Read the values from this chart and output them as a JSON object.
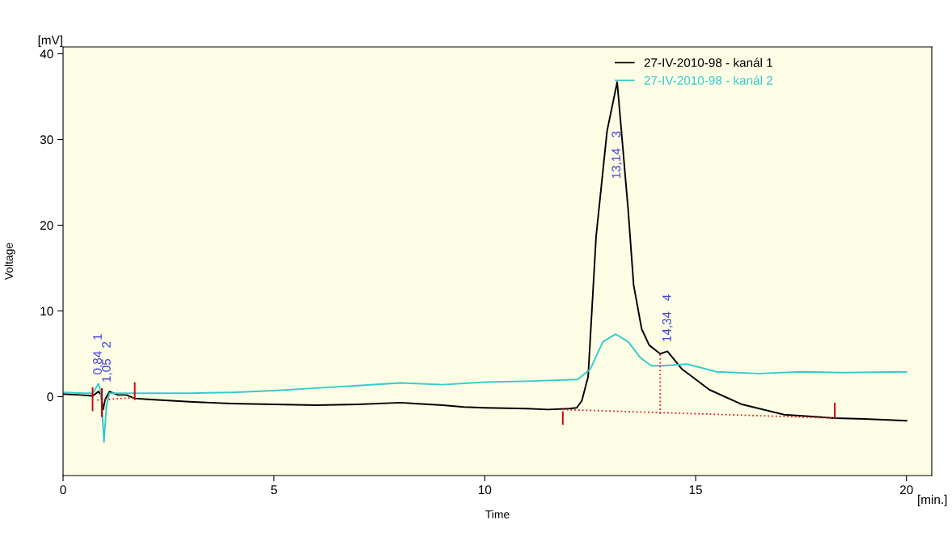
{
  "chart_data": {
    "type": "line",
    "xlabel": "Time",
    "ylabel": "Voltage",
    "xlim": [
      0,
      20.6
    ],
    "ylim": [
      -9.2,
      40.8
    ],
    "xticks": [
      0,
      5,
      10,
      15,
      20
    ],
    "yticks": [
      0,
      10,
      20,
      30,
      40
    ],
    "grid": false,
    "legend": "top right",
    "marker": "none",
    "series": [
      {
        "name": "27-IV-2010-98 - kanál 1",
        "color": "#000000",
        "line_style": "solid",
        "x": [
          0,
          0.4,
          0.7,
          0.84,
          0.9,
          0.95,
          1.0,
          1.1,
          1.3,
          1.5,
          1.7,
          2,
          3,
          4,
          5,
          6,
          7,
          8,
          9,
          9.5,
          10,
          11,
          11.5,
          12,
          12.18,
          12.3,
          12.45,
          12.64,
          12.9,
          13.14,
          13.4,
          13.53,
          13.72,
          13.9,
          14.16,
          14.33,
          14.68,
          15.33,
          16.1,
          17.1,
          18.3,
          19,
          20
        ],
        "values": [
          0.3,
          0.2,
          0.1,
          0.6,
          0.2,
          -1.5,
          -0.3,
          0.6,
          0.2,
          0.2,
          -0.2,
          -0.3,
          -0.6,
          -0.8,
          -0.9,
          -1.0,
          -0.9,
          -0.7,
          -1.0,
          -1.2,
          -1.3,
          -1.4,
          -1.5,
          -1.4,
          -1.3,
          -0.5,
          2.3,
          18.7,
          31,
          36.7,
          21.8,
          13,
          7.9,
          6.0,
          5.0,
          5.3,
          3.2,
          0.8,
          -0.9,
          -2.1,
          -2.5,
          -2.6,
          -2.8
        ]
      },
      {
        "name": "27-IV-2010-98 - kanál 2",
        "color": "#33cccc",
        "line_style": "solid",
        "x": [
          0,
          0.5,
          0.7,
          0.84,
          0.9,
          0.97,
          1.03,
          1.1,
          1.5,
          3,
          4,
          5,
          6,
          7,
          8,
          9,
          10,
          11,
          12.2,
          12.5,
          12.8,
          13.1,
          13.4,
          13.7,
          13.95,
          14.2,
          14.8,
          15.5,
          16.5,
          17.5,
          18.5,
          20
        ],
        "values": [
          0.5,
          0.4,
          0.4,
          1.5,
          0.5,
          -5.3,
          -1.0,
          0.4,
          0.4,
          0.4,
          0.5,
          0.7,
          1.0,
          1.3,
          1.6,
          1.4,
          1.7,
          1.8,
          2.0,
          3.2,
          6.4,
          7.3,
          6.4,
          4.5,
          3.6,
          3.6,
          3.8,
          2.9,
          2.7,
          2.9,
          2.8,
          2.9
        ]
      },
      {
        "color": "#dd2222",
        "line_style": "dotted",
        "x": [
          0.81,
          1.7
        ],
        "values": [
          -0.4,
          -0.1
        ]
      },
      {
        "color": "#dd2222",
        "line_style": "dotted",
        "x": [
          11.85,
          18.3
        ],
        "values": [
          -1.5,
          -2.5
        ]
      },
      {
        "color": "#dd2222",
        "line_style": "dotted",
        "x": [
          14.16,
          14.16
        ],
        "values": [
          -2.0,
          5.0
        ]
      },
      {
        "color": "#cc0000",
        "line_style": "solid",
        "x": [
          0.7,
          0.7
        ],
        "values": [
          1.0,
          -1.6
        ]
      },
      {
        "color": "#cc0000",
        "line_style": "solid",
        "x": [
          0.92,
          0.92
        ],
        "values": [
          0.9,
          -2.3
        ]
      },
      {
        "color": "#cc0000",
        "line_style": "solid",
        "x": [
          1.7,
          1.7
        ],
        "values": [
          1.6,
          -0.3
        ]
      },
      {
        "color": "#cc0000",
        "line_style": "solid",
        "x": [
          11.85,
          11.85
        ],
        "values": [
          -1.8,
          -3.2
        ]
      },
      {
        "color": "#cc0000",
        "line_style": "solid",
        "x": [
          18.3,
          18.3
        ],
        "values": [
          -0.8,
          -2.5
        ]
      }
    ],
    "annotations": [
      "[mV]",
      "[min.]",
      {
        "text": "0,84   1",
        "x": 0.84,
        "y": 1.5
      },
      {
        "text": "1,05   2",
        "x": 1.05,
        "y": 0.6
      },
      {
        "text": "13,14   3",
        "x": 13.14,
        "y": 31
      },
      {
        "text": "14,34   4",
        "x": 14.34,
        "y": 5.3
      }
    ]
  }
}
